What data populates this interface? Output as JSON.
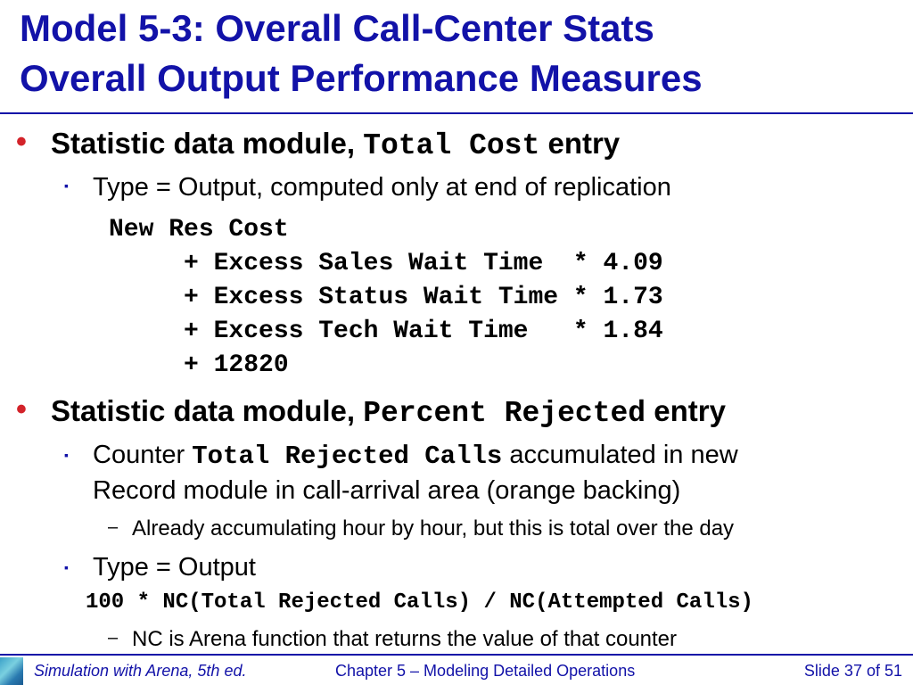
{
  "title": {
    "line1": "Model 5-3:  Overall Call-Center Stats",
    "line2": "Overall Output Performance Measures"
  },
  "section1": {
    "prefix": "Statistic data module, ",
    "code": "Total Cost",
    "suffix": " entry",
    "sub1": "Type = Output, computed only at end of replication",
    "code_lines": [
      "New Res Cost",
      "     + Excess Sales Wait Time  * 4.09",
      "     + Excess Status Wait Time * 1.73",
      "     + Excess Tech Wait Time   * 1.84",
      "     + 12820"
    ]
  },
  "section2": {
    "prefix": "Statistic data module, ",
    "code": "Percent Rejected",
    "suffix": " entry",
    "sub1_prefix": "Counter ",
    "sub1_code": "Total Rejected Calls",
    "sub1_suffix": " accumulated in new",
    "sub1_line2": "Record module in call-arrival area (orange backing)",
    "sub1_dash": "Already accumulating hour by hour, but this is total over the day",
    "sub2": "Type = Output",
    "code_line": "100 * NC(Total Rejected Calls) / NC(Attempted Calls)",
    "sub2_dash": "NC is Arena function that returns the value of that counter"
  },
  "bullets": {
    "level1": "•",
    "level2": "▪",
    "level3": "–"
  },
  "footer": {
    "left": "Simulation with Arena, 5th ed.",
    "center": "Chapter 5 – Modeling Detailed Operations",
    "right": "Slide 37 of 51"
  },
  "colors": {
    "title": "#1212a8",
    "bullet": "#d3232a"
  }
}
